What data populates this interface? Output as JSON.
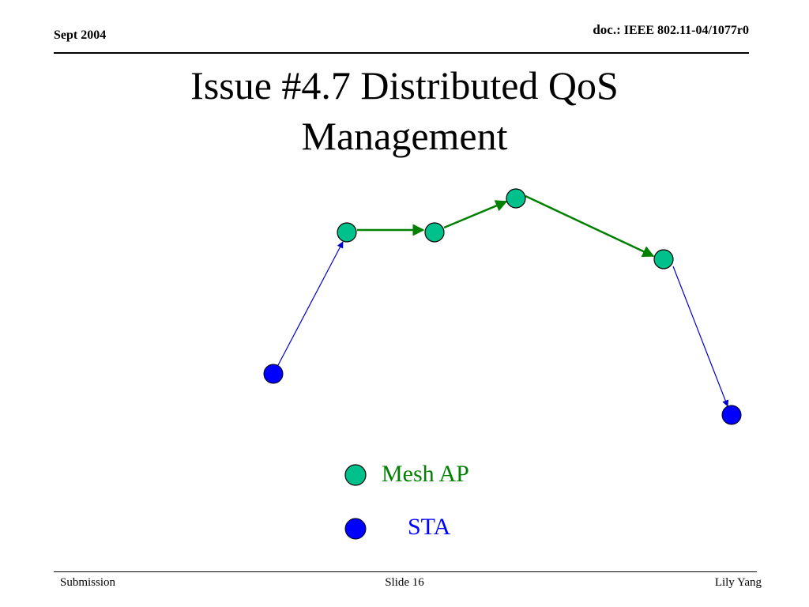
{
  "header": {
    "date": "Sept 2004",
    "doc_label": "doc.:",
    "doc_id": "IEEE 802.11-04/1077r0"
  },
  "slide": {
    "title_line1": "Issue #4.7 Distributed QoS",
    "title_line2": "Management"
  },
  "legend": {
    "mesh_ap": {
      "label": "Mesh AP",
      "color": "#00c08b",
      "text_color": "#008000"
    },
    "sta": {
      "label": "STA",
      "color": "#0000ff",
      "text_color": "#0000ff"
    }
  },
  "diagram": {
    "node_types": [
      "mesh_ap",
      "sta"
    ],
    "links": [
      {
        "from": "sta-1",
        "to": "mesh-ap-1",
        "type": "sta-to-ap",
        "color": "#0000cc"
      },
      {
        "from": "mesh-ap-1",
        "to": "mesh-ap-2",
        "type": "ap-to-ap",
        "color": "#008000"
      },
      {
        "from": "mesh-ap-2",
        "to": "mesh-ap-3",
        "type": "ap-to-ap",
        "color": "#008000"
      },
      {
        "from": "mesh-ap-3",
        "to": "mesh-ap-4",
        "type": "ap-to-ap",
        "color": "#008000"
      },
      {
        "from": "mesh-ap-4",
        "to": "sta-2",
        "type": "ap-to-sta",
        "color": "#0000cc"
      }
    ]
  },
  "footer": {
    "left": "Submission",
    "center": "Slide 16",
    "right": "Lily Yang"
  }
}
